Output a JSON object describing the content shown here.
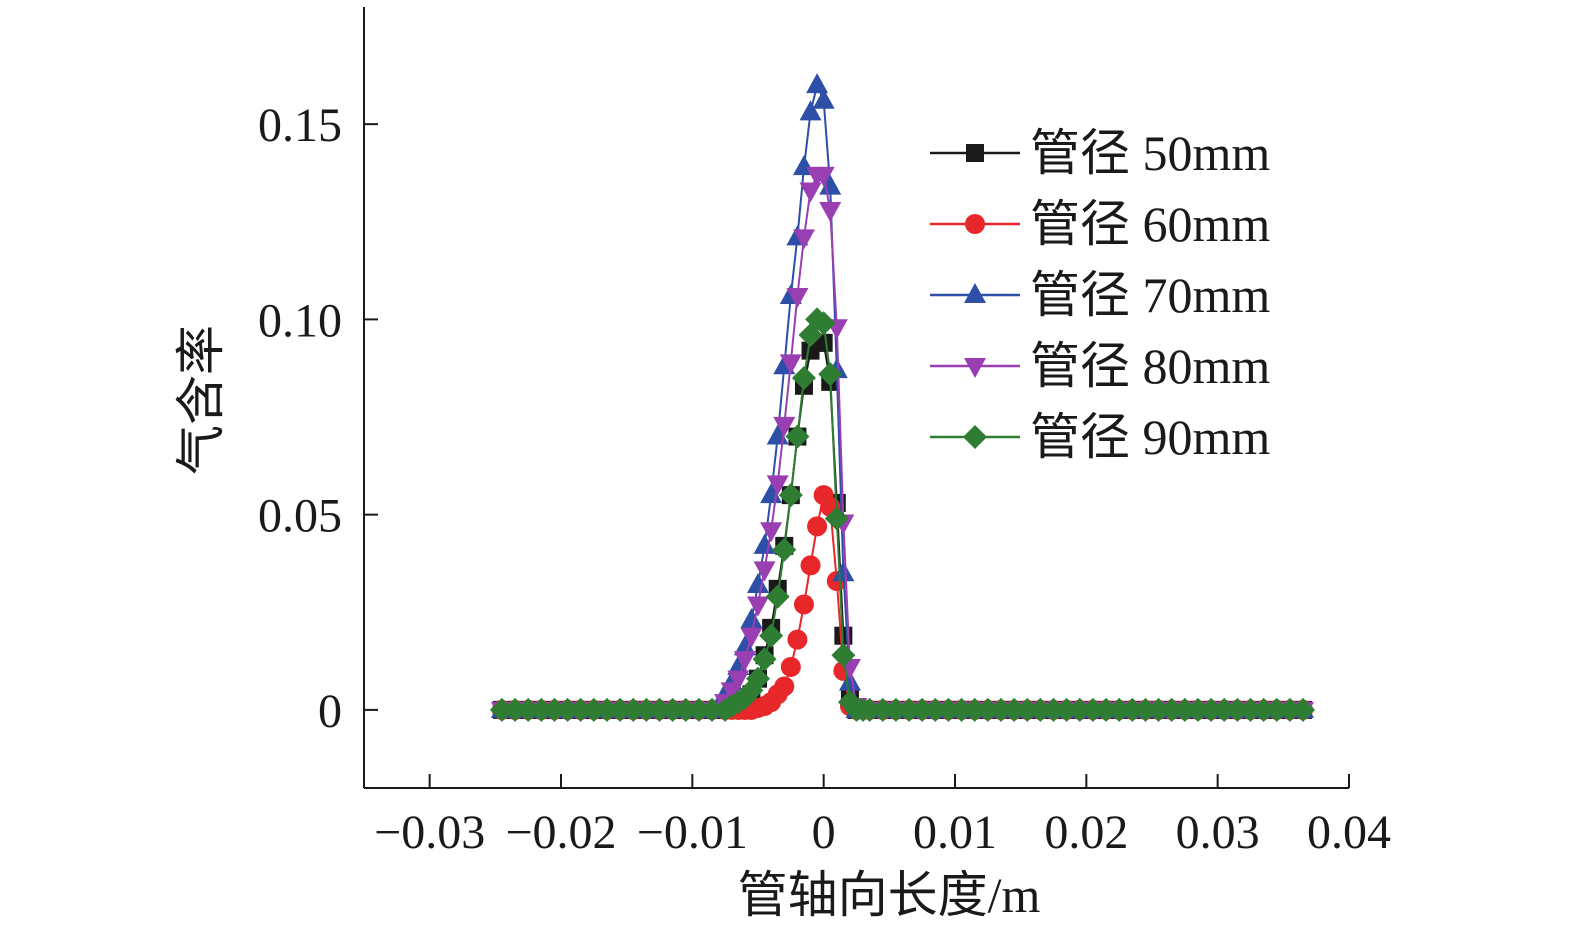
{
  "chart_data": {
    "type": "line",
    "title": "",
    "xlabel": "管轴向长度/m",
    "ylabel": "气含率",
    "xlim": [
      -0.035,
      0.04
    ],
    "ylim": [
      -0.02,
      0.18
    ],
    "x_ticks": [
      -0.03,
      -0.02,
      -0.01,
      0,
      0.01,
      0.02,
      0.03,
      0.04
    ],
    "x_tick_labels": [
      "−0.03",
      "−0.02",
      "−0.01",
      "0",
      "0.01",
      "0.02",
      "0.03",
      "0.04"
    ],
    "y_ticks": [
      0,
      0.05,
      0.1,
      0.15
    ],
    "y_tick_labels": [
      "0",
      "0.05",
      "0.10",
      "0.15"
    ],
    "grid": false,
    "legend_position": "top-right",
    "x": [
      -0.0245,
      -0.0235,
      -0.0225,
      -0.0215,
      -0.0205,
      -0.0195,
      -0.0185,
      -0.0175,
      -0.0165,
      -0.0155,
      -0.0145,
      -0.0135,
      -0.0125,
      -0.0115,
      -0.0105,
      -0.0095,
      -0.0085,
      -0.0075,
      -0.007,
      -0.0065,
      -0.006,
      -0.0055,
      -0.005,
      -0.0045,
      -0.004,
      -0.0035,
      -0.003,
      -0.0025,
      -0.002,
      -0.0015,
      -0.001,
      -0.0005,
      0.0,
      0.0005,
      0.001,
      0.0015,
      0.002,
      0.0025,
      0.003,
      0.0035,
      0.0045,
      0.0055,
      0.0065,
      0.0075,
      0.0085,
      0.0095,
      0.0105,
      0.0115,
      0.0125,
      0.0135,
      0.0145,
      0.0155,
      0.0165,
      0.0175,
      0.0185,
      0.0195,
      0.0205,
      0.0215,
      0.0225,
      0.0235,
      0.0245,
      0.0255,
      0.0265,
      0.0275,
      0.0285,
      0.0295,
      0.0305,
      0.0315,
      0.0325,
      0.0335,
      0.0345,
      0.0355,
      0.0365
    ],
    "series": [
      {
        "name": "管径 50mm",
        "color": "#1a1a1a",
        "marker": "square",
        "values": [
          0,
          0,
          0,
          0,
          0,
          0,
          0,
          0,
          0,
          0,
          0,
          0,
          0,
          0,
          0,
          0,
          0,
          0,
          0,
          0.001,
          0.002,
          0.004,
          0.008,
          0.014,
          0.021,
          0.031,
          0.042,
          0.055,
          0.07,
          0.083,
          0.092,
          0.094,
          0.094,
          0.084,
          0.053,
          0.019,
          0.003,
          0,
          0,
          0,
          0,
          0,
          0,
          0,
          0,
          0,
          0,
          0,
          0,
          0,
          0,
          0,
          0,
          0,
          0,
          0,
          0,
          0,
          0,
          0,
          0,
          0,
          0,
          0,
          0,
          0,
          0,
          0,
          0,
          0,
          0,
          0,
          0
        ]
      },
      {
        "name": "管径 60mm",
        "color": "#e8272a",
        "marker": "circle",
        "values": [
          0,
          0,
          0,
          0,
          0,
          0,
          0,
          0,
          0,
          0,
          0,
          0,
          0,
          0,
          0,
          0,
          0,
          0,
          0,
          0,
          0,
          0,
          0.0005,
          0.001,
          0.002,
          0.004,
          0.006,
          0.011,
          0.018,
          0.027,
          0.037,
          0.047,
          0.055,
          0.052,
          0.033,
          0.01,
          0.001,
          0,
          0,
          0,
          0,
          0,
          0,
          0,
          0,
          0,
          0,
          0,
          0,
          0,
          0,
          0,
          0,
          0,
          0,
          0,
          0,
          0,
          0,
          0,
          0,
          0,
          0,
          0,
          0,
          0,
          0,
          0,
          0,
          0,
          0,
          0,
          0
        ]
      },
      {
        "name": "管径 70mm",
        "color": "#2e4fa8",
        "marker": "triangle-up",
        "values": [
          0,
          0,
          0,
          0,
          0,
          0,
          0,
          0,
          0,
          0,
          0,
          0,
          0,
          0,
          0,
          0,
          0,
          0.004,
          0.007,
          0.011,
          0.016,
          0.023,
          0.032,
          0.042,
          0.055,
          0.07,
          0.088,
          0.106,
          0.121,
          0.139,
          0.153,
          0.16,
          0.156,
          0.134,
          0.087,
          0.035,
          0.007,
          0,
          0,
          0,
          0,
          0,
          0,
          0,
          0,
          0,
          0,
          0,
          0,
          0,
          0,
          0,
          0,
          0,
          0,
          0,
          0,
          0,
          0,
          0,
          0,
          0,
          0,
          0,
          0,
          0,
          0,
          0,
          0,
          0,
          0,
          0,
          0
        ]
      },
      {
        "name": "管径 80mm",
        "color": "#9a3fb2",
        "marker": "triangle-down",
        "values": [
          0,
          0,
          0,
          0,
          0,
          0,
          0,
          0,
          0,
          0,
          0,
          0,
          0,
          0,
          0,
          0,
          0,
          0.002,
          0.005,
          0.008,
          0.013,
          0.019,
          0.027,
          0.036,
          0.046,
          0.058,
          0.073,
          0.089,
          0.106,
          0.121,
          0.133,
          0.137,
          0.137,
          0.128,
          0.098,
          0.048,
          0.011,
          0.001,
          0,
          0,
          0,
          0,
          0,
          0,
          0,
          0,
          0,
          0,
          0,
          0,
          0,
          0,
          0,
          0,
          0,
          0,
          0,
          0,
          0,
          0,
          0,
          0,
          0,
          0,
          0,
          0,
          0,
          0,
          0,
          0,
          0,
          0,
          0
        ]
      },
      {
        "name": "管径 90mm",
        "color": "#2e7d32",
        "marker": "diamond",
        "values": [
          0,
          0,
          0,
          0,
          0,
          0,
          0,
          0,
          0,
          0,
          0,
          0,
          0,
          0,
          0,
          0,
          0,
          0,
          0.001,
          0.002,
          0.003,
          0.005,
          0.008,
          0.013,
          0.019,
          0.029,
          0.041,
          0.055,
          0.07,
          0.085,
          0.096,
          0.1,
          0.099,
          0.086,
          0.049,
          0.014,
          0.002,
          0,
          0,
          0,
          0,
          0,
          0,
          0,
          0,
          0,
          0,
          0,
          0,
          0,
          0,
          0,
          0,
          0,
          0,
          0,
          0,
          0,
          0,
          0,
          0,
          0,
          0,
          0,
          0,
          0,
          0,
          0,
          0,
          0,
          0,
          0,
          0
        ]
      }
    ]
  }
}
